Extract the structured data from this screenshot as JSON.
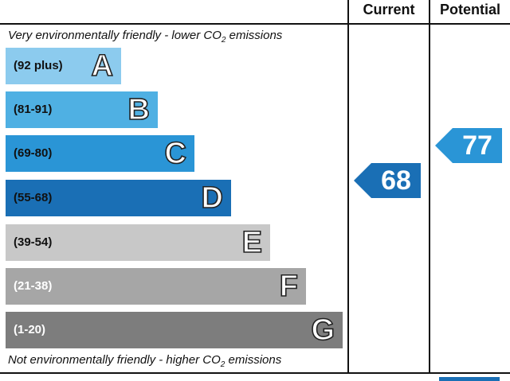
{
  "header": {
    "current_label": "Current",
    "potential_label": "Potential"
  },
  "captions": {
    "top_prefix": "Very environmentally friendly - lower C",
    "top_sub": "2",
    "top_suffix": " emissions",
    "top_o": "O",
    "bottom_prefix": "Not environmentally friendly - higher C",
    "bottom_o": "O",
    "bottom_sub": "2",
    "bottom_suffix": " emissions"
  },
  "bands": [
    {
      "letter": "A",
      "range": "(92 plus)",
      "color": "#8ccbee",
      "text_color": "#111111"
    },
    {
      "letter": "B",
      "range": "(81-91)",
      "color": "#4fb0e3",
      "text_color": "#111111"
    },
    {
      "letter": "C",
      "range": "(69-80)",
      "color": "#2a95d6",
      "text_color": "#111111"
    },
    {
      "letter": "D",
      "range": "(55-68)",
      "color": "#1a6fb5",
      "text_color": "#111111"
    },
    {
      "letter": "E",
      "range": "(39-54)",
      "color": "#c8c8c8",
      "text_color": "#111111"
    },
    {
      "letter": "F",
      "range": "(21-38)",
      "color": "#a6a6a6",
      "text_color": "#ffffff"
    },
    {
      "letter": "G",
      "range": "(1-20)",
      "color": "#7d7d7d",
      "text_color": "#ffffff"
    }
  ],
  "ratings": {
    "current": {
      "value": "68",
      "band": "D",
      "color": "#1a6fb5"
    },
    "potential": {
      "value": "77",
      "band": "C",
      "color": "#2a95d6"
    }
  }
}
